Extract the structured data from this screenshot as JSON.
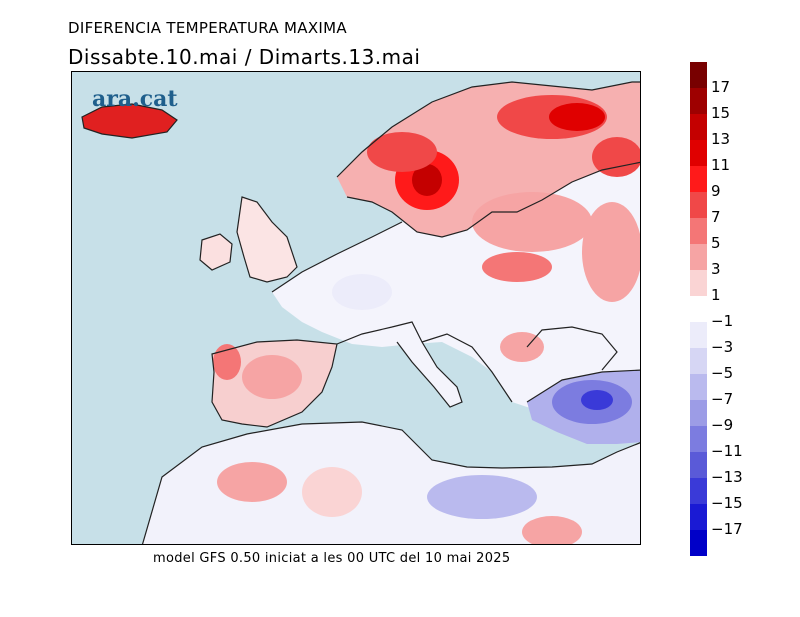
{
  "header": {
    "title": "DIFERENCIA TEMPERATURA MAXIMA",
    "period": "Dissabte.10.mai  /  Dimarts.13.mai"
  },
  "logo": {
    "text": "ara.cat",
    "color": "#1f5f8c"
  },
  "footer": {
    "text": "model GFS 0.50 iniciat a les 00 UTC del 10 mai 2025"
  },
  "legend": {
    "labels": [
      "17",
      "15",
      "13",
      "11",
      "9",
      "7",
      "5",
      "3",
      "1",
      "−1",
      "−3",
      "−5",
      "−7",
      "−9",
      "−11",
      "−13",
      "−15",
      "−17"
    ],
    "colors": [
      "#780000",
      "#9e0000",
      "#c40000",
      "#e00000",
      "#ff1a1a",
      "#f04848",
      "#f47676",
      "#f6a4a4",
      "#fad4d4",
      "#ffffff",
      "#ececfa",
      "#d6d6f4",
      "#babaee",
      "#9c9ce6",
      "#7c7ce0",
      "#5a5ad8",
      "#3a3ad8",
      "#1a1ad4",
      "#0000c8"
    ],
    "sea_color": "#c7e0e8"
  }
}
